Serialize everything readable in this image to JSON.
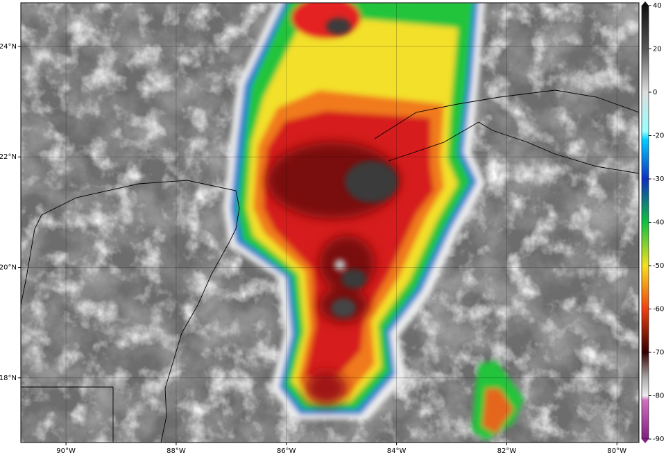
{
  "map": {
    "xlim": [
      -90.82,
      -79.6
    ],
    "ylim": [
      16.83,
      24.79
    ],
    "xticks": [
      {
        "value": -90,
        "label": "90°W"
      },
      {
        "value": -88,
        "label": "88°W"
      },
      {
        "value": -86,
        "label": "86°W"
      },
      {
        "value": -84,
        "label": "84°W"
      },
      {
        "value": -82,
        "label": "82°W"
      },
      {
        "value": -80,
        "label": "80°W"
      }
    ],
    "yticks": [
      {
        "value": 18,
        "label": "18°N"
      },
      {
        "value": 20,
        "label": "20°N"
      },
      {
        "value": 22,
        "label": "22°N"
      },
      {
        "value": 24,
        "label": "24°N"
      }
    ],
    "grid": true
  },
  "colorbar": {
    "ticks": [
      40,
      20,
      0,
      -20,
      -30,
      -40,
      -50,
      -60,
      -70,
      -80,
      -90
    ]
  }
}
